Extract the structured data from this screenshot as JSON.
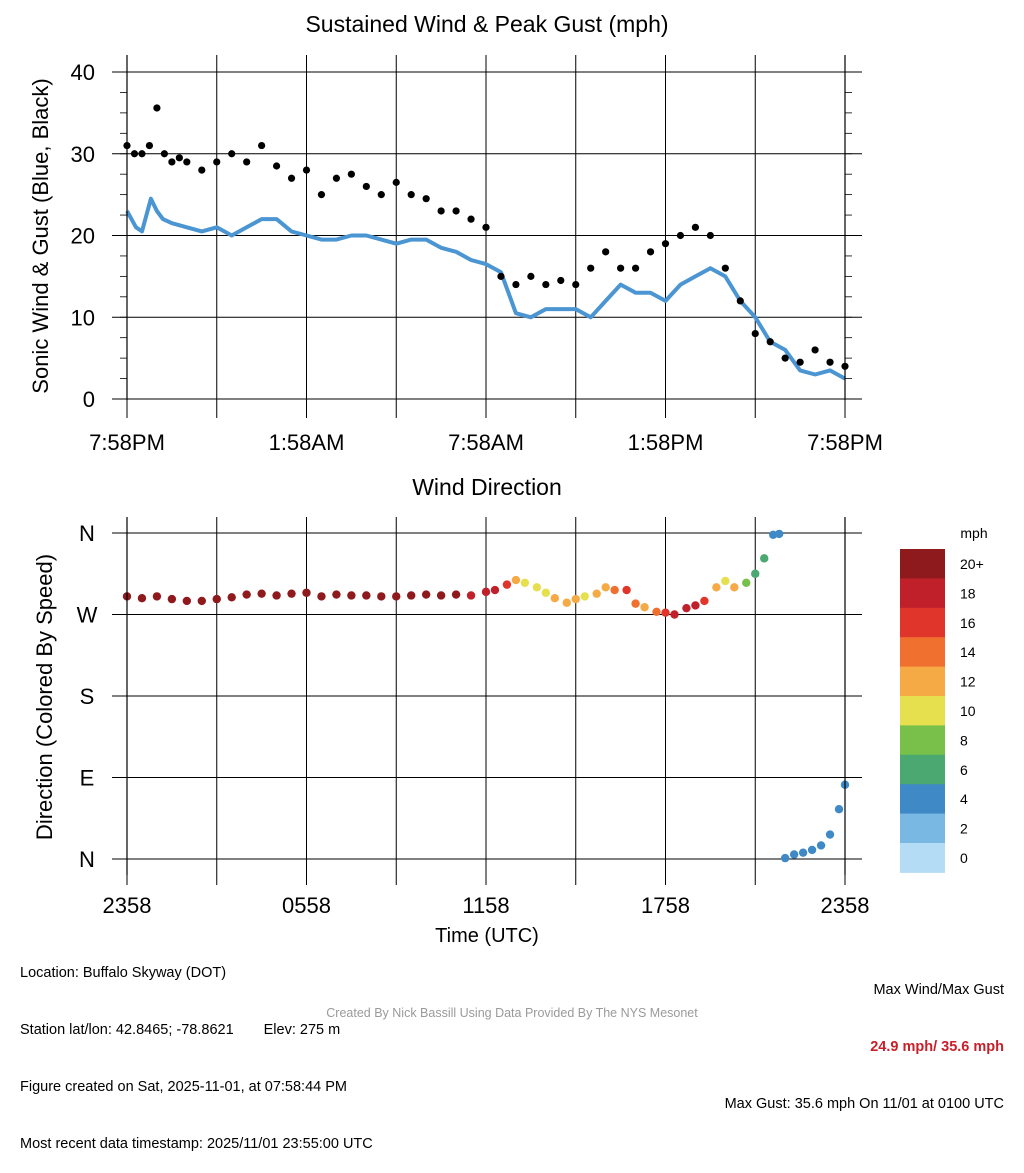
{
  "chart_data": [
    {
      "type": "line",
      "title": "Sustained Wind & Peak Gust (mph)",
      "ylabel": "Sonic Wind & Gust (Blue, Black)",
      "xlabel": "",
      "x_tick_labels": [
        "7:58PM",
        "1:58AM",
        "7:58AM",
        "1:58PM",
        "7:58PM"
      ],
      "ylim": [
        0,
        40
      ],
      "y_ticks": [
        0,
        10,
        20,
        30,
        40
      ],
      "x_range_hours": [
        0,
        24
      ],
      "series": [
        {
          "name": "Sustained Wind",
          "color": "#4b96d2",
          "style": "line",
          "hours": [
            0,
            0.3,
            0.5,
            0.8,
            1.0,
            1.2,
            1.5,
            2.0,
            2.5,
            3.0,
            3.5,
            4.0,
            4.5,
            5.0,
            5.5,
            6.0,
            6.5,
            7.0,
            7.5,
            8.0,
            8.5,
            9.0,
            9.5,
            10.0,
            10.5,
            11.0,
            11.5,
            12.0,
            12.5,
            13.0,
            13.5,
            14.0,
            14.5,
            15.0,
            15.5,
            16.0,
            16.5,
            17.0,
            17.5,
            18.0,
            18.5,
            19.0,
            19.5,
            20.0,
            20.5,
            21.0,
            21.5,
            22.0,
            22.5,
            23.0,
            23.5,
            24.0
          ],
          "values": [
            23,
            21,
            20.5,
            24.5,
            23,
            22,
            21.5,
            21,
            20.5,
            21,
            20,
            21,
            22,
            22,
            20.5,
            20,
            19.5,
            19.5,
            20,
            20,
            19.5,
            19,
            19.5,
            19.5,
            18.5,
            18,
            17,
            16.5,
            15.5,
            10.5,
            10,
            11,
            11,
            11,
            10,
            12,
            14,
            13,
            13,
            12,
            14,
            15,
            16,
            15,
            12,
            10,
            7,
            6,
            3.5,
            3,
            3.5,
            2.5
          ]
        },
        {
          "name": "Peak Gust",
          "color": "#000000",
          "style": "dots",
          "hours": [
            0,
            0.25,
            0.5,
            0.75,
            1.0,
            1.25,
            1.5,
            1.75,
            2.0,
            2.5,
            3.0,
            3.5,
            4.0,
            4.5,
            5.0,
            5.5,
            6.0,
            6.5,
            7.0,
            7.5,
            8.0,
            8.5,
            9.0,
            9.5,
            10.0,
            10.5,
            11.0,
            11.5,
            12.0,
            12.5,
            13.0,
            13.5,
            14.0,
            14.5,
            15.0,
            15.5,
            16.0,
            16.5,
            17.0,
            17.5,
            18.0,
            18.5,
            19.0,
            19.5,
            20.0,
            20.5,
            21.0,
            21.5,
            22.0,
            22.5,
            23.0,
            23.5,
            24.0
          ],
          "values": [
            31,
            30,
            30,
            31,
            35.6,
            30,
            29,
            29.5,
            29,
            28,
            29,
            30,
            29,
            31,
            28.5,
            27,
            28,
            25,
            27,
            27.5,
            26,
            25,
            26.5,
            25,
            24.5,
            23,
            23,
            22,
            21,
            15,
            14,
            15,
            14,
            14.5,
            14,
            16,
            18,
            16,
            16,
            18,
            19,
            20,
            21,
            20,
            16,
            12,
            8,
            7,
            5,
            4.5,
            6,
            4.5,
            4
          ]
        }
      ]
    },
    {
      "type": "scatter",
      "title": "Wind Direction",
      "ylabel": "Direction (Colored By Speed)",
      "xlabel": "Time (UTC)",
      "x_tick_labels": [
        "2358",
        "0558",
        "1158",
        "1758",
        "2358"
      ],
      "y_tick_labels": [
        "N",
        "E",
        "S",
        "W",
        "N"
      ],
      "ylim": [
        0,
        360
      ],
      "x_range_hours": [
        0,
        24
      ],
      "points": {
        "hours": [
          0,
          0.5,
          1.0,
          1.5,
          2.0,
          2.5,
          3.0,
          3.5,
          4.0,
          4.5,
          5.0,
          5.5,
          6.0,
          6.5,
          7.0,
          7.5,
          8.0,
          8.5,
          9.0,
          9.5,
          10.0,
          10.5,
          11.0,
          11.5,
          12.0,
          12.3,
          12.7,
          13.0,
          13.3,
          13.7,
          14.0,
          14.3,
          14.7,
          15.0,
          15.3,
          15.7,
          16.0,
          16.3,
          16.7,
          17.0,
          17.3,
          17.7,
          18.0,
          18.3,
          18.7,
          19.0,
          19.3,
          19.7,
          20.0,
          20.3,
          20.7,
          21.0,
          21.3,
          21.6,
          21.8,
          22.0,
          22.3,
          22.6,
          22.9,
          23.2,
          23.5,
          23.8,
          24.0
        ],
        "direction_deg": [
          290,
          288,
          290,
          287,
          285,
          285,
          287,
          289,
          292,
          293,
          291,
          293,
          294,
          290,
          292,
          291,
          291,
          290,
          290,
          291,
          292,
          291,
          292,
          291,
          295,
          297,
          303,
          308,
          305,
          300,
          294,
          288,
          283,
          287,
          290,
          293,
          300,
          297,
          297,
          282,
          278,
          273,
          272,
          270,
          277,
          280,
          285,
          300,
          307,
          300,
          305,
          315,
          332,
          358,
          359,
          1,
          5,
          7,
          10,
          15,
          27,
          55,
          82
        ],
        "speed_mph": [
          21,
          21,
          21,
          21,
          21,
          21,
          21,
          21,
          21,
          21,
          21,
          21,
          21,
          21,
          21,
          21,
          20,
          20,
          20,
          20,
          20,
          19,
          19,
          18,
          18,
          17,
          15,
          11,
          10,
          10,
          10,
          11,
          12,
          11,
          10,
          11,
          12,
          13,
          15,
          13,
          12,
          14,
          16,
          17,
          18,
          18,
          15,
          12,
          10,
          11,
          8,
          6,
          5,
          4,
          4,
          4,
          4,
          4,
          4,
          4,
          3,
          3,
          3
        ]
      },
      "colorbar": {
        "title": "mph",
        "labels": [
          "20+",
          "18",
          "16",
          "14",
          "12",
          "10",
          "8",
          "6",
          "4",
          "2",
          "0"
        ],
        "colors": [
          "#8f1a1e",
          "#c0202a",
          "#e0352b",
          "#f07030",
          "#f5aa45",
          "#e6e04e",
          "#78c04a",
          "#4aa870",
          "#3f8ac6",
          "#7ab8e4",
          "#b4dcf5"
        ]
      }
    }
  ],
  "footer": {
    "location": "Location: Buffalo Skyway (DOT)",
    "latlon": "Station lat/lon: 42.8465; -78.8621",
    "elev": "Elev: 275 m",
    "created": "Figure created on Sat, 2025-11-01, at 07:58:44 PM",
    "recent": "Most recent data timestamp: 2025/11/01 23:55:00 UTC",
    "max_label": "Max Wind/Max Gust",
    "max_values": "24.9 mph/ 35.6 mph",
    "max_gust_note": "Max Gust: 35.6 mph On 11/01 at 0100 UTC",
    "credit": "Created By Nick Bassill Using Data Provided By The NYS Mesonet"
  }
}
